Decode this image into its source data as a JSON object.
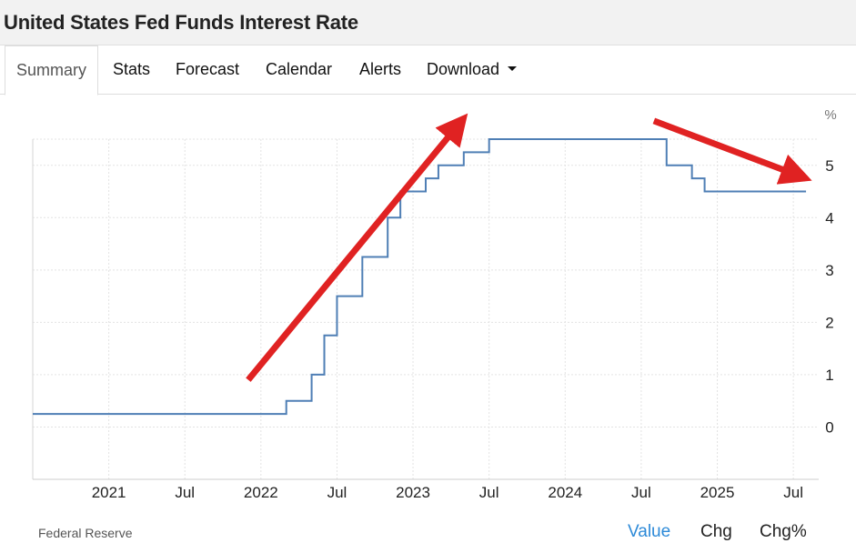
{
  "title": "United States Fed Funds Interest Rate",
  "tabs": [
    {
      "label": "Summary",
      "active": true
    },
    {
      "label": "Stats"
    },
    {
      "label": "Forecast"
    },
    {
      "label": "Calendar"
    },
    {
      "label": "Alerts"
    },
    {
      "label": "Download",
      "dropdown": true
    }
  ],
  "footer": {
    "source": "Federal Reserve",
    "buttons": [
      {
        "label": "Value",
        "active": true
      },
      {
        "label": "Chg"
      },
      {
        "label": "Chg%"
      }
    ]
  },
  "colors": {
    "line": "#4f7fb5",
    "arrow": "#e02222",
    "active_button": "#2d8ad8",
    "grid": "#e3e3e3"
  },
  "chart_data": {
    "type": "line",
    "title": "",
    "xlabel": "",
    "ylabel": "%",
    "y_axis_side": "right",
    "xlim": [
      "2020-07",
      "2025-09"
    ],
    "ylim": [
      -1,
      5.5
    ],
    "x_ticks": [
      {
        "date": "2021-01",
        "label": "2021"
      },
      {
        "date": "2021-07",
        "label": "Jul"
      },
      {
        "date": "2022-01",
        "label": "2022"
      },
      {
        "date": "2022-07",
        "label": "Jul"
      },
      {
        "date": "2023-01",
        "label": "2023"
      },
      {
        "date": "2023-07",
        "label": "Jul"
      },
      {
        "date": "2024-01",
        "label": "2024"
      },
      {
        "date": "2024-07",
        "label": "Jul"
      },
      {
        "date": "2025-01",
        "label": "2025"
      },
      {
        "date": "2025-07",
        "label": "Jul"
      }
    ],
    "y_ticks": [
      0,
      1,
      2,
      3,
      4,
      5
    ],
    "grid": true,
    "step": true,
    "series": [
      {
        "x": [
          "2020-07",
          "2022-03",
          "2022-05",
          "2022-06",
          "2022-07",
          "2022-09",
          "2022-11",
          "2022-12",
          "2023-02",
          "2023-03",
          "2023-05",
          "2023-07",
          "2024-09",
          "2024-11",
          "2024-12",
          "2025-08"
        ],
        "values": [
          0.25,
          0.5,
          1.0,
          1.75,
          2.5,
          3.25,
          4.0,
          4.5,
          4.75,
          5.0,
          5.25,
          5.5,
          5.0,
          4.75,
          4.5,
          4.5
        ]
      }
    ],
    "annotations": [
      {
        "type": "arrow",
        "from": [
          "2021-12",
          0.9
        ],
        "to": [
          "2023-05",
          5.9
        ],
        "color": "#e02222"
      },
      {
        "type": "arrow",
        "from": [
          "2024-08",
          5.85
        ],
        "to": [
          "2025-08",
          4.75
        ],
        "color": "#e02222"
      }
    ]
  }
}
